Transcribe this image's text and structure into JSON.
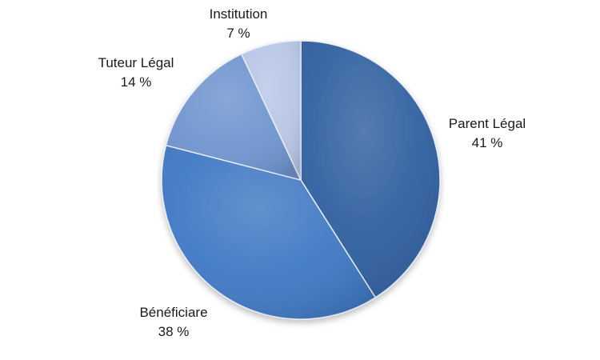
{
  "chart_data": {
    "type": "pie",
    "title": "",
    "slices": [
      {
        "name": "Parent Légal",
        "value": 41,
        "value_label": "41 %",
        "color": "#2f5f9f"
      },
      {
        "name": "Bénéficiare",
        "value": 38,
        "value_label": "38 %",
        "color": "#3f78c3"
      },
      {
        "name": "Tuteur Légal",
        "value": 14,
        "value_label": "14 %",
        "color": "#6f94cf"
      },
      {
        "name": "Institution",
        "value": 7,
        "value_label": "7 %",
        "color": "#b7c6e6"
      }
    ],
    "start_angle": "12 o'clock",
    "direction": "clockwise",
    "legend": "none",
    "data_labels": "outside"
  }
}
